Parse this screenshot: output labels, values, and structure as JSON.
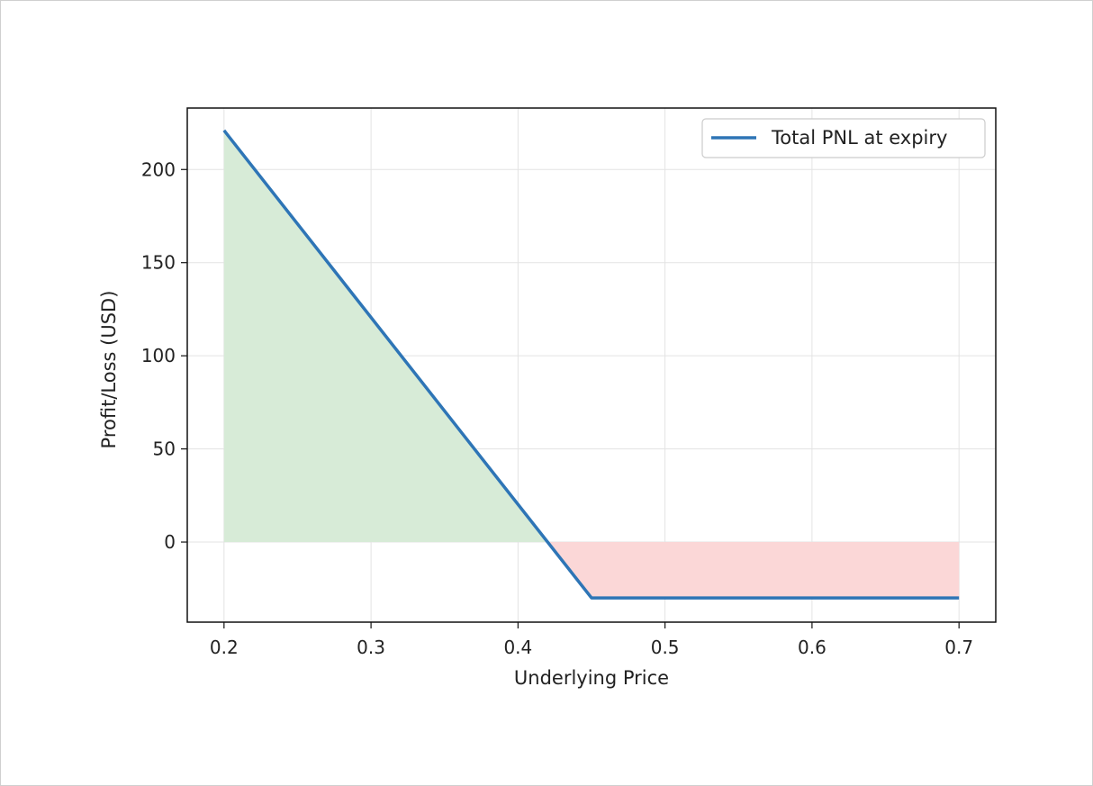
{
  "chart_data": {
    "type": "line",
    "xlabel": "Underlying Price",
    "ylabel": "Profit/Loss (USD)",
    "xlim": [
      0.175,
      0.725
    ],
    "ylim": [
      -43,
      233
    ],
    "x_ticks": [
      0.2,
      0.3,
      0.4,
      0.5,
      0.6,
      0.7
    ],
    "x_tick_labels": [
      "0.2",
      "0.3",
      "0.4",
      "0.5",
      "0.6",
      "0.7"
    ],
    "y_ticks": [
      0,
      50,
      100,
      150,
      200
    ],
    "y_tick_labels": [
      "0",
      "50",
      "100",
      "150",
      "200"
    ],
    "grid": true,
    "legend_placement": "top-right",
    "series": [
      {
        "name": "Total PNL at expiry",
        "color": "#2e75b6",
        "x": [
          0.2,
          0.45,
          0.7
        ],
        "y": [
          221,
          -30,
          -30
        ]
      }
    ],
    "fills": [
      {
        "meaning": "profit",
        "color": "#d7ebd7"
      },
      {
        "meaning": "loss",
        "color": "#fbd7d7"
      }
    ]
  }
}
